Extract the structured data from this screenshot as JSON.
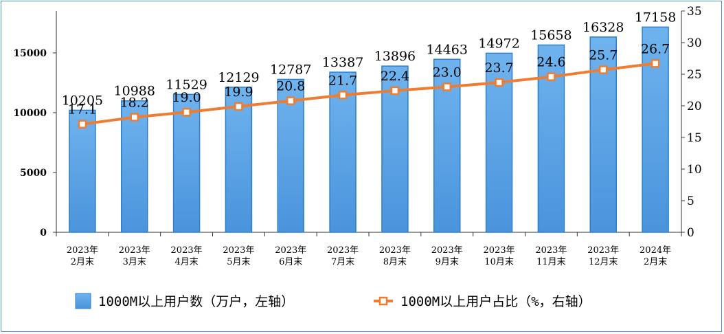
{
  "chart_data": {
    "type": "bar+line",
    "categories": [
      [
        "2023年",
        "2月末"
      ],
      [
        "2023年",
        "3月末"
      ],
      [
        "2023年",
        "4月末"
      ],
      [
        "2023年",
        "5月末"
      ],
      [
        "2023年",
        "6月末"
      ],
      [
        "2023年",
        "7月末"
      ],
      [
        "2023年",
        "8月末"
      ],
      [
        "2023年",
        "9月末"
      ],
      [
        "2023年",
        "10月末"
      ],
      [
        "2023年",
        "11月末"
      ],
      [
        "2023年",
        "12月末"
      ],
      [
        "2024年",
        "2月末"
      ]
    ],
    "series": [
      {
        "name": "1000M以上用户数（万户，左轴）",
        "type": "bar",
        "axis": "left",
        "values": [
          10205,
          10988,
          11529,
          12129,
          12787,
          13387,
          13896,
          14463,
          14972,
          15658,
          16328,
          17158
        ],
        "labels": [
          "10205",
          "10988",
          "11529",
          "12129",
          "12787",
          "13387",
          "13896",
          "14463",
          "14972",
          "15658",
          "16328",
          "17158"
        ]
      },
      {
        "name": "1000M以上用户占比（%，右轴）",
        "type": "line",
        "axis": "right",
        "values": [
          17.1,
          18.2,
          19.0,
          19.9,
          20.8,
          21.7,
          22.4,
          23.0,
          23.7,
          24.6,
          25.7,
          26.7
        ],
        "labels": [
          "17.1",
          "18.2",
          "19.0",
          "19.9",
          "20.8",
          "21.7",
          "22.4",
          "23.0",
          "23.7",
          "24.6",
          "25.7",
          "26.7"
        ]
      }
    ],
    "y_left": {
      "min": 0,
      "max": 18500,
      "ticks": [
        0,
        5000,
        10000,
        15000
      ],
      "tick_labels": [
        "0",
        "5000",
        "10000",
        "15000"
      ]
    },
    "y_right": {
      "min": 0,
      "max": 35,
      "ticks": [
        0,
        5,
        10,
        15,
        20,
        25,
        30,
        35
      ],
      "tick_labels": [
        "0",
        "5",
        "10",
        "15",
        "20",
        "25",
        "30",
        "35"
      ]
    },
    "grid": false,
    "legend_position": "bottom",
    "colors": {
      "bar": "#4f9fe3",
      "bar_edge": "#2f7fc8",
      "line": "#ee7d31",
      "frame": "#4a90d9"
    }
  }
}
